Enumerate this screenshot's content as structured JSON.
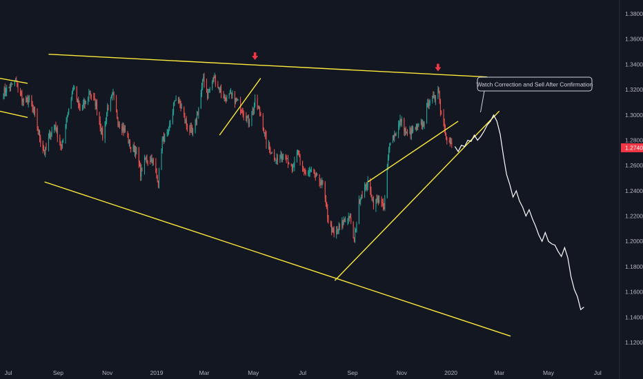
{
  "chart_data": {
    "type": "candlestick",
    "instrument_note": "GBP/USD-style daily chart with trendline annotations",
    "grid": false,
    "y_scale": "linear",
    "ylim": [
      1.11,
      1.39
    ],
    "y_ticks": [
      "1.38000",
      "1.36000",
      "1.34000",
      "1.32000",
      "1.30000",
      "1.28000",
      "1.26000",
      "1.24000",
      "1.22000",
      "1.20000",
      "1.18000",
      "1.16000",
      "1.14000",
      "1.12000"
    ],
    "x_ticks": [
      "Jul",
      "Sep",
      "Nov",
      "2019",
      "Mar",
      "May",
      "Jul",
      "Sep",
      "Nov",
      "2020",
      "Mar",
      "May",
      "Jul"
    ],
    "last_price": "1.27400",
    "last_price_color": "#f23645",
    "up_color": "#26a69a",
    "down_color": "#ef5350",
    "trendline_color": "#ffeb3b",
    "projection_color": "#ffffff",
    "price_path": [
      [
        "2018-06-25",
        1.318
      ],
      [
        "2018-07-05",
        1.323
      ],
      [
        "2018-07-10",
        1.327
      ],
      [
        "2018-07-20",
        1.31
      ],
      [
        "2018-07-27",
        1.312
      ],
      [
        "2018-08-03",
        1.299
      ],
      [
        "2018-08-10",
        1.28
      ],
      [
        "2018-08-15",
        1.27
      ],
      [
        "2018-08-22",
        1.285
      ],
      [
        "2018-08-28",
        1.292
      ],
      [
        "2018-09-05",
        1.273
      ],
      [
        "2018-09-12",
        1.3
      ],
      [
        "2018-09-20",
        1.322
      ],
      [
        "2018-09-27",
        1.305
      ],
      [
        "2018-10-05",
        1.31
      ],
      [
        "2018-10-10",
        1.318
      ],
      [
        "2018-10-18",
        1.308
      ],
      [
        "2018-10-26",
        1.283
      ],
      [
        "2018-11-01",
        1.305
      ],
      [
        "2018-11-08",
        1.315
      ],
      [
        "2018-11-14",
        1.295
      ],
      [
        "2018-11-22",
        1.288
      ],
      [
        "2018-11-30",
        1.274
      ],
      [
        "2018-12-07",
        1.272
      ],
      [
        "2018-12-12",
        1.254
      ],
      [
        "2018-12-18",
        1.265
      ],
      [
        "2018-12-26",
        1.265
      ],
      [
        "2019-01-03",
        1.248
      ],
      [
        "2019-01-08",
        1.28
      ],
      [
        "2019-01-15",
        1.285
      ],
      [
        "2019-01-25",
        1.315
      ],
      [
        "2019-02-01",
        1.305
      ],
      [
        "2019-02-08",
        1.29
      ],
      [
        "2019-02-15",
        1.285
      ],
      [
        "2019-02-22",
        1.305
      ],
      [
        "2019-02-28",
        1.33
      ],
      [
        "2019-03-05",
        1.315
      ],
      [
        "2019-03-13",
        1.33
      ],
      [
        "2019-03-20",
        1.32
      ],
      [
        "2019-03-27",
        1.313
      ],
      [
        "2019-04-03",
        1.315
      ],
      [
        "2019-04-12",
        1.31
      ],
      [
        "2019-04-25",
        1.295
      ],
      [
        "2019-05-01",
        1.305
      ],
      [
        "2019-05-03",
        1.31
      ],
      [
        "2019-05-10",
        1.3
      ],
      [
        "2019-05-17",
        1.278
      ],
      [
        "2019-05-24",
        1.27
      ],
      [
        "2019-05-31",
        1.264
      ],
      [
        "2019-06-10",
        1.27
      ],
      [
        "2019-06-18",
        1.255
      ],
      [
        "2019-06-25",
        1.27
      ],
      [
        "2019-07-05",
        1.252
      ],
      [
        "2019-07-12",
        1.255
      ],
      [
        "2019-07-19",
        1.25
      ],
      [
        "2019-07-26",
        1.245
      ],
      [
        "2019-08-02",
        1.216
      ],
      [
        "2019-08-09",
        1.205
      ],
      [
        "2019-08-14",
        1.209
      ],
      [
        "2019-08-20",
        1.215
      ],
      [
        "2019-08-28",
        1.22
      ],
      [
        "2019-09-03",
        1.2
      ],
      [
        "2019-09-10",
        1.235
      ],
      [
        "2019-09-20",
        1.246
      ],
      [
        "2019-09-27",
        1.23
      ],
      [
        "2019-10-04",
        1.234
      ],
      [
        "2019-10-10",
        1.225
      ],
      [
        "2019-10-17",
        1.28
      ],
      [
        "2019-10-24",
        1.285
      ],
      [
        "2019-10-31",
        1.296
      ],
      [
        "2019-11-07",
        1.285
      ],
      [
        "2019-11-14",
        1.287
      ],
      [
        "2019-11-21",
        1.29
      ],
      [
        "2019-11-28",
        1.293
      ],
      [
        "2019-12-05",
        1.312
      ],
      [
        "2019-12-12",
        1.313
      ],
      [
        "2019-12-16",
        1.324
      ],
      [
        "2019-12-19",
        1.305
      ],
      [
        "2019-12-27",
        1.282
      ],
      [
        "2020-01-03",
        1.274
      ]
    ],
    "projection_path": [
      [
        "2020-01-06",
        1.275
      ],
      [
        "2020-01-10",
        1.271
      ],
      [
        "2020-01-14",
        1.276
      ],
      [
        "2020-01-18",
        1.275
      ],
      [
        "2020-01-22",
        1.28
      ],
      [
        "2020-01-26",
        1.279
      ],
      [
        "2020-01-30",
        1.284
      ],
      [
        "2020-02-03",
        1.28
      ],
      [
        "2020-02-07",
        1.283
      ],
      [
        "2020-02-11",
        1.287
      ],
      [
        "2020-02-15",
        1.292
      ],
      [
        "2020-02-19",
        1.295
      ],
      [
        "2020-02-23",
        1.3
      ],
      [
        "2020-02-27",
        1.295
      ],
      [
        "2020-03-02",
        1.285
      ],
      [
        "2020-03-06",
        1.268
      ],
      [
        "2020-03-10",
        1.253
      ],
      [
        "2020-03-14",
        1.245
      ],
      [
        "2020-03-18",
        1.235
      ],
      [
        "2020-03-22",
        1.24
      ],
      [
        "2020-03-26",
        1.232
      ],
      [
        "2020-03-30",
        1.227
      ],
      [
        "2020-04-03",
        1.22
      ],
      [
        "2020-04-07",
        1.225
      ],
      [
        "2020-04-11",
        1.218
      ],
      [
        "2020-04-15",
        1.212
      ],
      [
        "2020-04-19",
        1.205
      ],
      [
        "2020-04-23",
        1.2
      ],
      [
        "2020-04-27",
        1.207
      ],
      [
        "2020-05-01",
        1.2
      ],
      [
        "2020-05-05",
        1.198
      ],
      [
        "2020-05-09",
        1.197
      ],
      [
        "2020-05-13",
        1.192
      ],
      [
        "2020-05-17",
        1.188
      ],
      [
        "2020-05-21",
        1.195
      ],
      [
        "2020-05-25",
        1.187
      ],
      [
        "2020-05-29",
        1.172
      ],
      [
        "2020-06-02",
        1.162
      ],
      [
        "2020-06-06",
        1.156
      ],
      [
        "2020-06-10",
        1.146
      ],
      [
        "2020-06-14",
        1.148
      ]
    ],
    "trendlines": [
      {
        "from": [
          "2018-06-20",
          1.329
        ],
        "to": [
          "2018-07-25",
          1.325
        ]
      },
      {
        "from": [
          "2018-06-20",
          1.303
        ],
        "to": [
          "2018-07-25",
          1.298
        ]
      },
      {
        "from": [
          "2018-08-20",
          1.348
        ],
        "to": [
          "2020-02-15",
          1.33
        ]
      },
      {
        "from": [
          "2018-08-15",
          1.247
        ],
        "to": [
          "2020-03-15",
          1.125
        ]
      },
      {
        "from": [
          "2019-03-20",
          1.284
        ],
        "to": [
          "2019-05-10",
          1.329
        ]
      },
      {
        "from": [
          "2019-08-10",
          1.169
        ],
        "to": [
          "2020-03-01",
          1.303
        ]
      },
      {
        "from": [
          "2019-09-20",
          1.247
        ],
        "to": [
          "2020-01-10",
          1.295
        ]
      }
    ],
    "markers": [
      {
        "date": "2019-05-03",
        "price": 1.344,
        "type": "down-arrow",
        "color": "#f23645"
      },
      {
        "date": "2019-12-16",
        "price": 1.335,
        "type": "down-arrow",
        "color": "#f23645"
      }
    ],
    "annotations": [
      {
        "text": "Watch Correction and Sell After Confirmation",
        "anchor_date": "2020-02-05",
        "anchor_price": 1.301
      }
    ]
  }
}
